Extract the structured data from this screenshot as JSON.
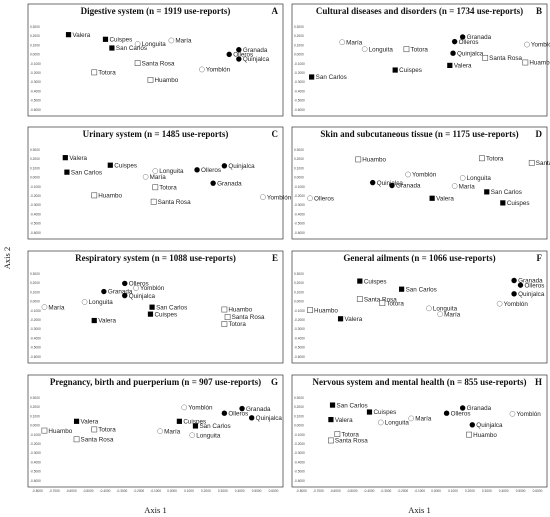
{
  "chart_data": [
    {
      "type": "scatter",
      "letter": "A",
      "title": "Digestive system (n = 1919 use-reports)",
      "xlabel": "Axis 1",
      "ylabel": "Axis 2",
      "xlim": [
        -0.8,
        0.7
      ],
      "ylim": [
        -0.8,
        0.7
      ],
      "yticks": [
        0.3,
        0.2,
        0.1,
        0.0,
        -0.1,
        -0.2,
        -0.3,
        -0.4,
        -0.5,
        -0.6
      ],
      "points": [
        {
          "label": "Valera",
          "x": -0.61,
          "y": 0.43,
          "marker": "filled-square"
        },
        {
          "label": "Cuispes",
          "x": -0.38,
          "y": 0.35,
          "marker": "filled-square"
        },
        {
          "label": "Longuita",
          "x": -0.18,
          "y": 0.27,
          "marker": "open-circle"
        },
        {
          "label": "María",
          "x": 0.03,
          "y": 0.33,
          "marker": "open-circle"
        },
        {
          "label": "San Carlos",
          "x": -0.34,
          "y": 0.2,
          "marker": "filled-square"
        },
        {
          "label": "Granada",
          "x": 0.45,
          "y": 0.17,
          "marker": "filled-circle"
        },
        {
          "label": "Olleros",
          "x": 0.39,
          "y": 0.09,
          "marker": "filled-circle"
        },
        {
          "label": "Quinjalca",
          "x": 0.45,
          "y": 0.01,
          "marker": "filled-circle"
        },
        {
          "label": "Santa Rosa",
          "x": -0.18,
          "y": -0.06,
          "marker": "open-square"
        },
        {
          "label": "Yomblón",
          "x": 0.22,
          "y": -0.17,
          "marker": "open-circle"
        },
        {
          "label": "Totora",
          "x": -0.45,
          "y": -0.22,
          "marker": "open-square"
        },
        {
          "label": "Huambo",
          "x": -0.1,
          "y": -0.35,
          "marker": "open-square"
        }
      ]
    },
    {
      "type": "scatter",
      "letter": "B",
      "title": "Cultural diseases and disorders (n = 1734 use-reports)",
      "xlabel": "Axis 1",
      "ylabel": "Axis 2",
      "xlim": [
        -0.8,
        0.7
      ],
      "ylim": [
        -0.8,
        0.7
      ],
      "yticks": [
        0.3,
        0.2,
        0.1,
        0.0,
        -0.1,
        -0.2,
        -0.3,
        -0.4,
        -0.5,
        -0.6
      ],
      "points": [
        {
          "label": "Granada",
          "x": 0.2,
          "y": 0.39,
          "marker": "filled-circle"
        },
        {
          "label": "Olleros",
          "x": 0.15,
          "y": 0.31,
          "marker": "filled-circle"
        },
        {
          "label": "María",
          "x": -0.55,
          "y": 0.3,
          "marker": "open-circle"
        },
        {
          "label": "Yomblón",
          "x": 0.6,
          "y": 0.26,
          "marker": "open-circle"
        },
        {
          "label": "Longuita",
          "x": -0.41,
          "y": 0.18,
          "marker": "open-circle"
        },
        {
          "label": "Totora",
          "x": -0.15,
          "y": 0.18,
          "marker": "open-square"
        },
        {
          "label": "Quinjalca",
          "x": 0.14,
          "y": 0.11,
          "marker": "filled-circle"
        },
        {
          "label": "Santa Rosa",
          "x": 0.34,
          "y": 0.03,
          "marker": "open-square"
        },
        {
          "label": "Huambo",
          "x": 0.59,
          "y": -0.05,
          "marker": "open-square"
        },
        {
          "label": "Valera",
          "x": 0.12,
          "y": -0.1,
          "marker": "filled-square"
        },
        {
          "label": "Cuispes",
          "x": -0.22,
          "y": -0.18,
          "marker": "filled-square"
        },
        {
          "label": "San Carlos",
          "x": -0.74,
          "y": -0.3,
          "marker": "filled-square"
        }
      ]
    },
    {
      "type": "scatter",
      "letter": "C",
      "title": "Urinary system (n = 1485 use-reports)",
      "xlabel": "Axis 1",
      "ylabel": "Axis 2",
      "xlim": [
        -0.8,
        0.7
      ],
      "ylim": [
        -0.8,
        0.7
      ],
      "yticks": [
        0.3,
        0.2,
        0.1,
        0.0,
        -0.1,
        -0.2,
        -0.3,
        -0.4,
        -0.5,
        -0.6
      ],
      "points": [
        {
          "label": "Valera",
          "x": -0.63,
          "y": 0.43,
          "marker": "filled-square"
        },
        {
          "label": "Cuispes",
          "x": -0.35,
          "y": 0.3,
          "marker": "filled-square"
        },
        {
          "label": "Quinjalca",
          "x": 0.36,
          "y": 0.29,
          "marker": "filled-circle"
        },
        {
          "label": "Olleros",
          "x": 0.19,
          "y": 0.22,
          "marker": "filled-circle"
        },
        {
          "label": "Longuita",
          "x": -0.07,
          "y": 0.2,
          "marker": "open-circle"
        },
        {
          "label": "San Carlos",
          "x": -0.62,
          "y": 0.18,
          "marker": "filled-square"
        },
        {
          "label": "María",
          "x": -0.13,
          "y": 0.1,
          "marker": "open-circle"
        },
        {
          "label": "Granada",
          "x": 0.29,
          "y": -0.01,
          "marker": "filled-circle"
        },
        {
          "label": "Totora",
          "x": -0.07,
          "y": -0.08,
          "marker": "open-square"
        },
        {
          "label": "Huambo",
          "x": -0.45,
          "y": -0.22,
          "marker": "open-square"
        },
        {
          "label": "Yomblón",
          "x": 0.6,
          "y": -0.25,
          "marker": "open-circle"
        },
        {
          "label": "Santa Rosa",
          "x": -0.08,
          "y": -0.33,
          "marker": "open-square"
        }
      ]
    },
    {
      "type": "scatter",
      "letter": "D",
      "title": "Skin and subcutaneous tissue (n = 1175 use-reports)",
      "xlabel": "Axis 1",
      "ylabel": "Axis 2",
      "xlim": [
        -0.8,
        0.7
      ],
      "ylim": [
        -0.8,
        0.7
      ],
      "yticks": [
        0.3,
        0.2,
        0.1,
        0.0,
        -0.1,
        -0.2,
        -0.3,
        -0.4,
        -0.5,
        -0.6
      ],
      "points": [
        {
          "label": "Huambo",
          "x": -0.45,
          "y": 0.4,
          "marker": "open-square"
        },
        {
          "label": "Totora",
          "x": 0.32,
          "y": 0.42,
          "marker": "open-square"
        },
        {
          "label": "Santa Rosa",
          "x": 0.63,
          "y": 0.34,
          "marker": "open-square"
        },
        {
          "label": "Yomblón",
          "x": -0.14,
          "y": 0.14,
          "marker": "open-circle"
        },
        {
          "label": "Longuita",
          "x": 0.2,
          "y": 0.08,
          "marker": "open-circle"
        },
        {
          "label": "Quinjalca",
          "x": -0.36,
          "y": 0.0,
          "marker": "filled-circle"
        },
        {
          "label": "Granada",
          "x": -0.24,
          "y": -0.05,
          "marker": "filled-circle"
        },
        {
          "label": "María",
          "x": 0.15,
          "y": -0.06,
          "marker": "open-circle"
        },
        {
          "label": "San Carlos",
          "x": 0.35,
          "y": -0.16,
          "marker": "filled-square"
        },
        {
          "label": "Olleros",
          "x": -0.75,
          "y": -0.27,
          "marker": "open-circle"
        },
        {
          "label": "Valera",
          "x": 0.01,
          "y": -0.27,
          "marker": "filled-square"
        },
        {
          "label": "Cuispes",
          "x": 0.45,
          "y": -0.35,
          "marker": "filled-square"
        }
      ]
    },
    {
      "type": "scatter",
      "letter": "E",
      "title": "Respiratory system (n = 1088 use-reports)",
      "xlabel": "Axis 1",
      "ylabel": "Axis 2",
      "xlim": [
        -0.8,
        0.7
      ],
      "ylim": [
        -0.8,
        0.7
      ],
      "yticks": [
        0.3,
        0.2,
        0.1,
        0.0,
        -0.1,
        -0.2,
        -0.3,
        -0.4,
        -0.5,
        -0.6
      ],
      "points": [
        {
          "label": "Olleros",
          "x": -0.26,
          "y": 0.4,
          "marker": "filled-circle"
        },
        {
          "label": "Yomblón",
          "x": -0.19,
          "y": 0.32,
          "marker": "open-circle"
        },
        {
          "label": "Granada",
          "x": -0.39,
          "y": 0.26,
          "marker": "filled-circle"
        },
        {
          "label": "Quinjalca",
          "x": -0.26,
          "y": 0.19,
          "marker": "filled-circle"
        },
        {
          "label": "Longuita",
          "x": -0.51,
          "y": 0.08,
          "marker": "open-circle"
        },
        {
          "label": "María",
          "x": -0.76,
          "y": -0.01,
          "marker": "open-circle"
        },
        {
          "label": "San Carlos",
          "x": -0.09,
          "y": -0.01,
          "marker": "filled-square"
        },
        {
          "label": "Huambo",
          "x": 0.36,
          "y": -0.05,
          "marker": "open-square"
        },
        {
          "label": "Cuispes",
          "x": -0.1,
          "y": -0.13,
          "marker": "filled-square"
        },
        {
          "label": "Santa Rosa",
          "x": 0.38,
          "y": -0.18,
          "marker": "open-square"
        },
        {
          "label": "Valera",
          "x": -0.45,
          "y": -0.24,
          "marker": "filled-square"
        },
        {
          "label": "Totora",
          "x": 0.36,
          "y": -0.3,
          "marker": "open-square"
        }
      ]
    },
    {
      "type": "scatter",
      "letter": "F",
      "title": "General ailments (n = 1066 use-reports)",
      "xlabel": "Axis 1",
      "ylabel": "Axis 2",
      "xlim": [
        -0.8,
        0.7
      ],
      "ylim": [
        -0.8,
        0.7
      ],
      "yticks": [
        0.3,
        0.2,
        0.1,
        0.0,
        -0.1,
        -0.2,
        -0.3,
        -0.4,
        -0.5,
        -0.6
      ],
      "points": [
        {
          "label": "Cuispes",
          "x": -0.44,
          "y": 0.44,
          "marker": "filled-square"
        },
        {
          "label": "Granada",
          "x": 0.52,
          "y": 0.45,
          "marker": "filled-circle"
        },
        {
          "label": "Olleros",
          "x": 0.56,
          "y": 0.37,
          "marker": "filled-circle"
        },
        {
          "label": "San Carlos",
          "x": -0.18,
          "y": 0.3,
          "marker": "filled-square"
        },
        {
          "label": "Quinjalca",
          "x": 0.52,
          "y": 0.22,
          "marker": "filled-circle"
        },
        {
          "label": "Santa Rosa",
          "x": -0.44,
          "y": 0.13,
          "marker": "open-square"
        },
        {
          "label": "Totora",
          "x": -0.3,
          "y": 0.06,
          "marker": "open-square"
        },
        {
          "label": "Yomblón",
          "x": 0.43,
          "y": 0.05,
          "marker": "open-circle"
        },
        {
          "label": "Longuita",
          "x": -0.01,
          "y": -0.03,
          "marker": "open-circle"
        },
        {
          "label": "Huambo",
          "x": -0.75,
          "y": -0.06,
          "marker": "open-square"
        },
        {
          "label": "María",
          "x": 0.06,
          "y": -0.13,
          "marker": "open-circle"
        },
        {
          "label": "Valera",
          "x": -0.56,
          "y": -0.21,
          "marker": "filled-square"
        }
      ]
    },
    {
      "type": "scatter",
      "letter": "G",
      "title": "Pregnancy, birth and puerperium (n = 907 use-reports)",
      "xlabel": "Axis 1",
      "ylabel": "Axis 2",
      "xlim": [
        -0.8,
        0.7
      ],
      "ylim": [
        -0.8,
        0.7
      ],
      "yticks": [
        0.3,
        0.2,
        0.1,
        0.0,
        -0.1,
        -0.2,
        -0.3,
        -0.4,
        -0.5,
        -0.6
      ],
      "points": [
        {
          "label": "Yomblón",
          "x": 0.11,
          "y": 0.4,
          "marker": "open-circle"
        },
        {
          "label": "Granada",
          "x": 0.47,
          "y": 0.38,
          "marker": "filled-circle"
        },
        {
          "label": "Olleros",
          "x": 0.36,
          "y": 0.3,
          "marker": "filled-circle"
        },
        {
          "label": "Quinjalca",
          "x": 0.53,
          "y": 0.22,
          "marker": "filled-circle"
        },
        {
          "label": "Valera",
          "x": -0.56,
          "y": 0.16,
          "marker": "filled-square"
        },
        {
          "label": "Cuispes",
          "x": 0.08,
          "y": 0.16,
          "marker": "filled-square"
        },
        {
          "label": "San Carlos",
          "x": 0.18,
          "y": 0.08,
          "marker": "filled-square"
        },
        {
          "label": "Totora",
          "x": -0.45,
          "y": 0.02,
          "marker": "open-square"
        },
        {
          "label": "Huambo",
          "x": -0.76,
          "y": 0.0,
          "marker": "open-square"
        },
        {
          "label": "María",
          "x": -0.04,
          "y": -0.01,
          "marker": "open-circle"
        },
        {
          "label": "Longuita",
          "x": 0.16,
          "y": -0.08,
          "marker": "open-circle"
        },
        {
          "label": "Santa Rosa",
          "x": -0.56,
          "y": -0.15,
          "marker": "open-square"
        }
      ]
    },
    {
      "type": "scatter",
      "letter": "H",
      "title": "Nervous system and mental health (n = 855 use-reports)",
      "xlabel": "Axis 1",
      "ylabel": "Axis 2",
      "xlim": [
        -0.8,
        0.7
      ],
      "ylim": [
        -0.8,
        0.7
      ],
      "yticks": [
        0.3,
        0.2,
        0.1,
        0.0,
        -0.1,
        -0.2,
        -0.3,
        -0.4,
        -0.5,
        -0.6
      ],
      "points": [
        {
          "label": "San Carlos",
          "x": -0.61,
          "y": 0.44,
          "marker": "filled-square"
        },
        {
          "label": "Granada",
          "x": 0.2,
          "y": 0.39,
          "marker": "filled-circle"
        },
        {
          "label": "Cuispes",
          "x": -0.38,
          "y": 0.32,
          "marker": "filled-square"
        },
        {
          "label": "Olleros",
          "x": 0.1,
          "y": 0.3,
          "marker": "filled-circle"
        },
        {
          "label": "Yomblón",
          "x": 0.51,
          "y": 0.29,
          "marker": "open-circle"
        },
        {
          "label": "María",
          "x": -0.12,
          "y": 0.21,
          "marker": "open-circle"
        },
        {
          "label": "Valera",
          "x": -0.62,
          "y": 0.19,
          "marker": "filled-square"
        },
        {
          "label": "Longuita",
          "x": -0.31,
          "y": 0.14,
          "marker": "open-circle"
        },
        {
          "label": "Quinjalca",
          "x": 0.26,
          "y": 0.1,
          "marker": "filled-circle"
        },
        {
          "label": "Totora",
          "x": -0.58,
          "y": -0.06,
          "marker": "open-square"
        },
        {
          "label": "Huambo",
          "x": 0.24,
          "y": -0.07,
          "marker": "open-square"
        },
        {
          "label": "Santa Rosa",
          "x": -0.62,
          "y": -0.17,
          "marker": "open-square"
        }
      ]
    }
  ],
  "shared_x_ticks": [
    -0.8,
    -0.7,
    -0.6,
    -0.5,
    -0.4,
    -0.3,
    -0.2,
    -0.1,
    0.0,
    0.1,
    0.2,
    0.3,
    0.4,
    0.5,
    0.6
  ],
  "shared_xlabel": "Axis 1",
  "shared_ylabel": "Axis 2"
}
